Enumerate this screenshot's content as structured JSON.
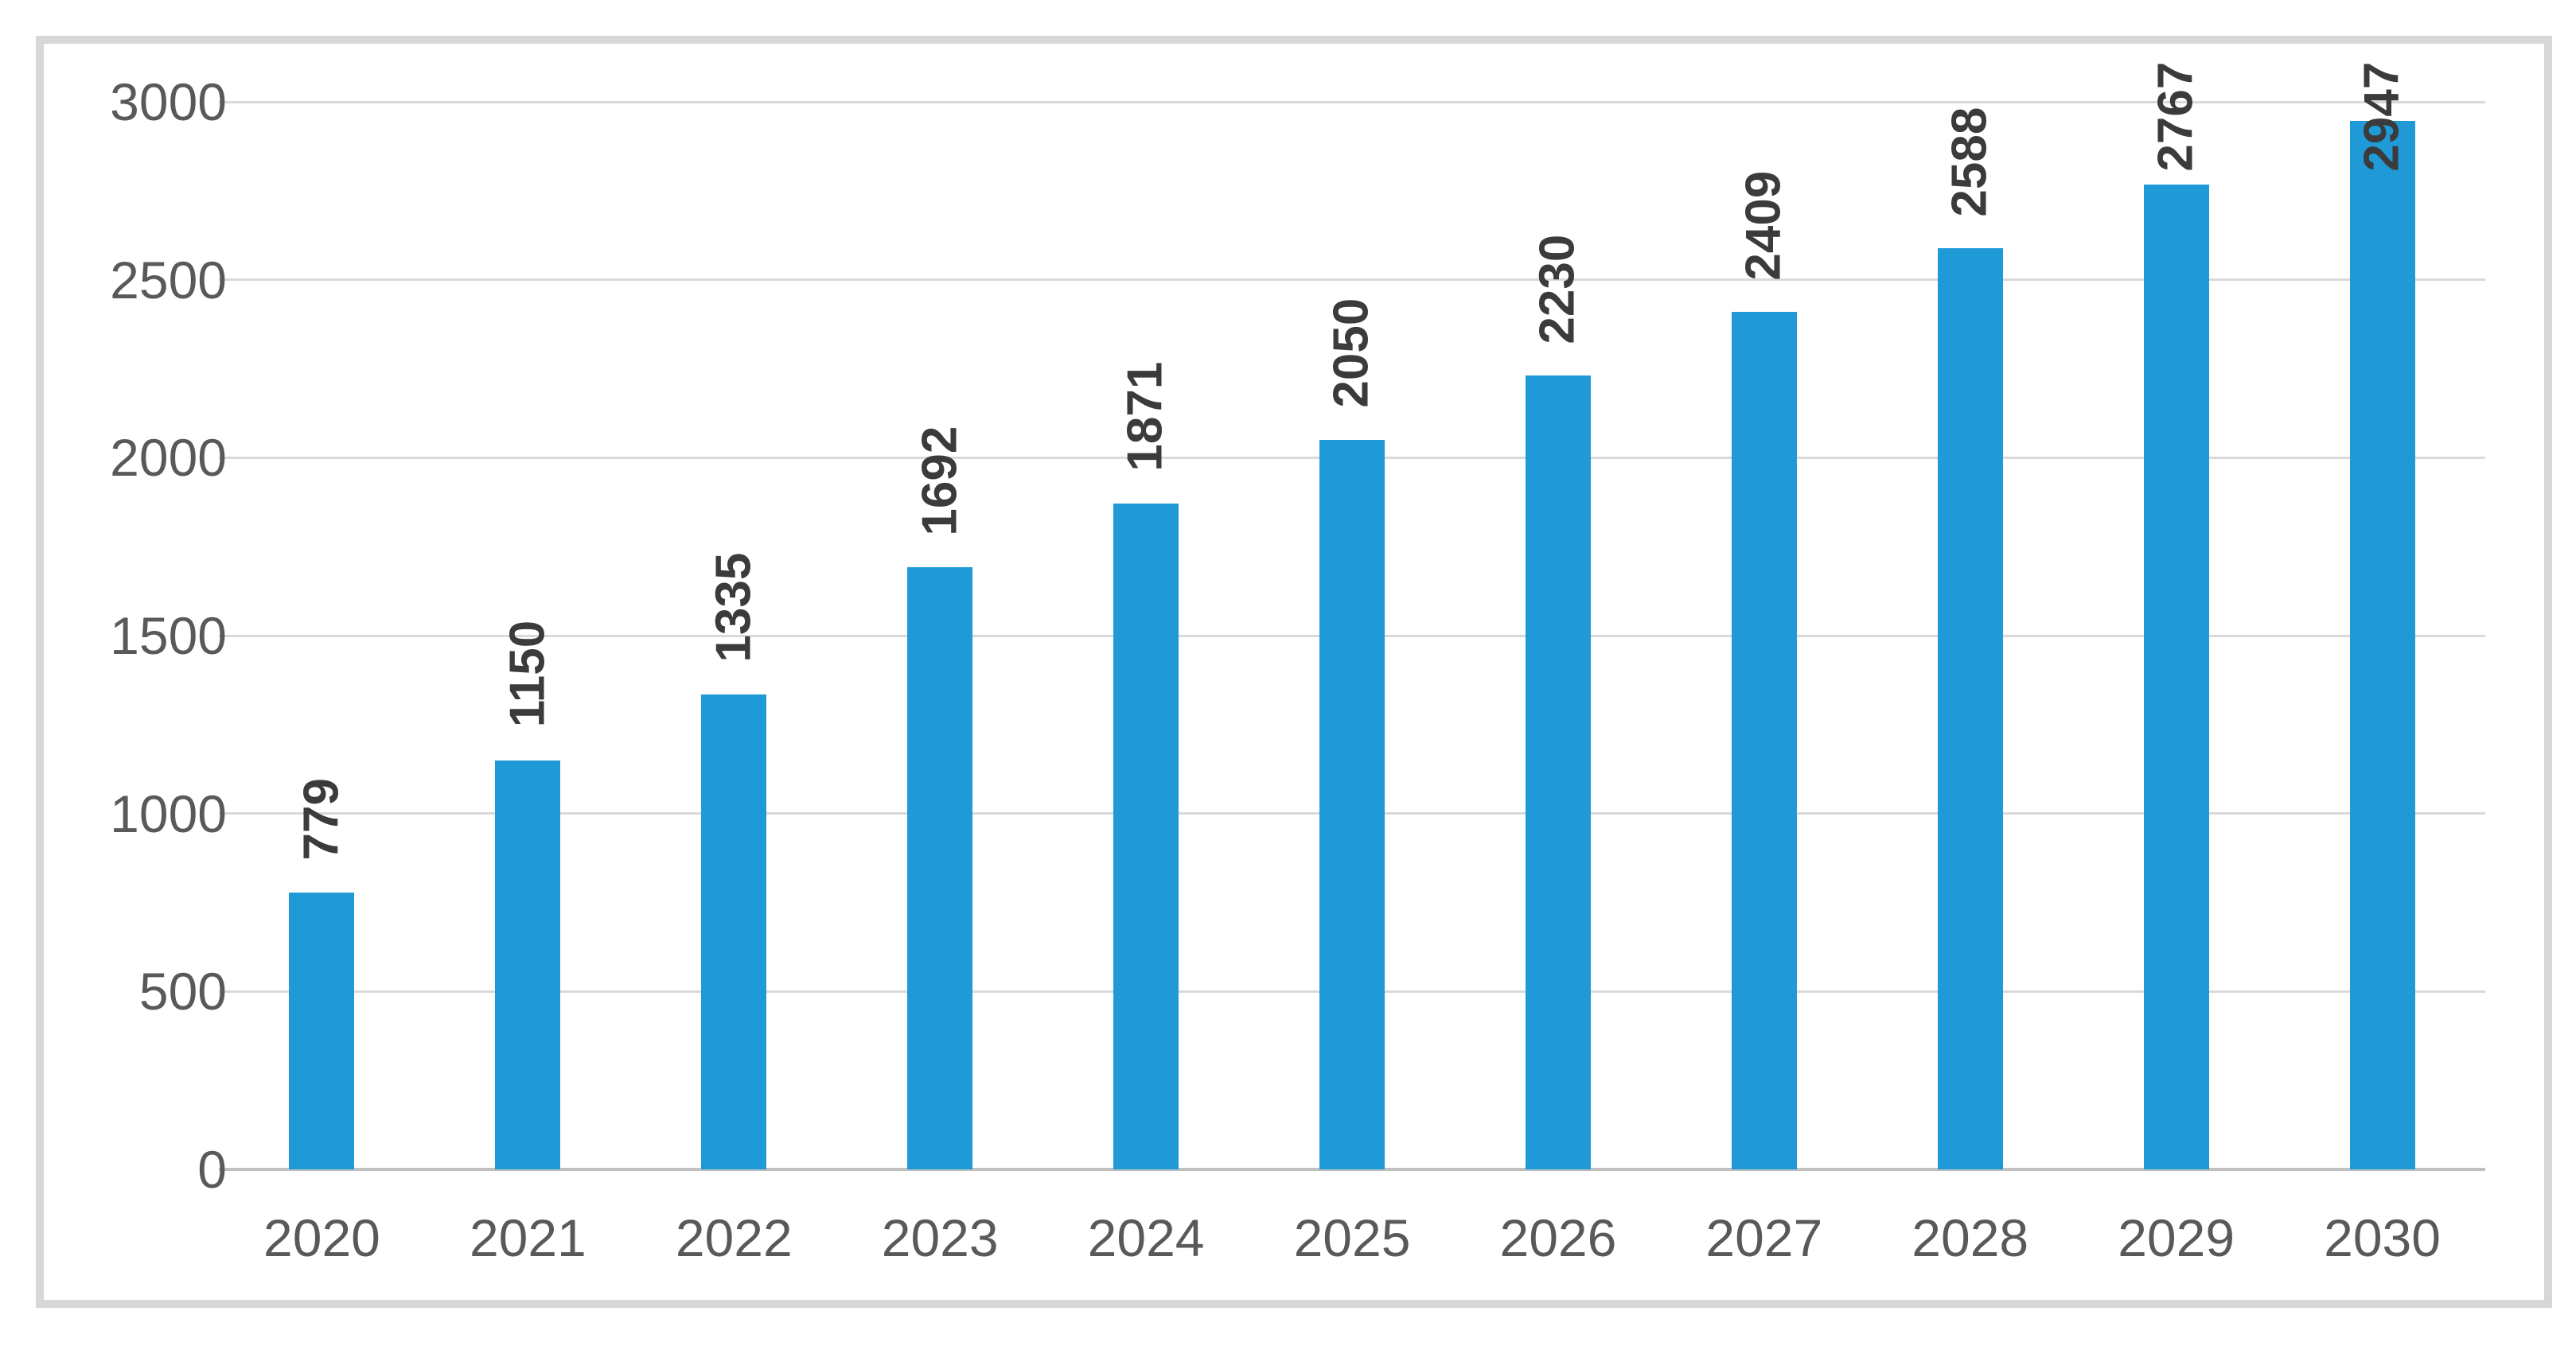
{
  "chart_data": {
    "type": "bar",
    "title": "",
    "xlabel": "",
    "ylabel": "",
    "categories": [
      "2020",
      "2021",
      "2022",
      "2023",
      "2024",
      "2025",
      "2026",
      "2027",
      "2028",
      "2029",
      "2030"
    ],
    "values": [
      779,
      1150,
      1335,
      1692,
      1871,
      2050,
      2230,
      2409,
      2588,
      2767,
      2947
    ],
    "data_label_texts": [
      "779",
      "1150",
      "1335",
      "1692",
      "1871",
      "2050",
      "2230",
      "2409",
      "2588",
      "2767",
      "2947"
    ],
    "ylim": [
      0,
      3000
    ],
    "ytick_step": 500,
    "ytick_labels": [
      "0",
      "500",
      "1000",
      "1500",
      "2000",
      "2500",
      "3000"
    ],
    "grid": true,
    "legend_position": "none",
    "data_label_rotation_deg": -90,
    "data_label_position": "outside-end",
    "colors": {
      "bar_fill": "#1f9ad7",
      "gridline": "#d9d9d9",
      "axis_line": "#c0c0c0",
      "tick_label": "#595959",
      "data_label": "#3b3b3b",
      "frame_border": "#d7d7d7",
      "background": "#ffffff"
    }
  }
}
